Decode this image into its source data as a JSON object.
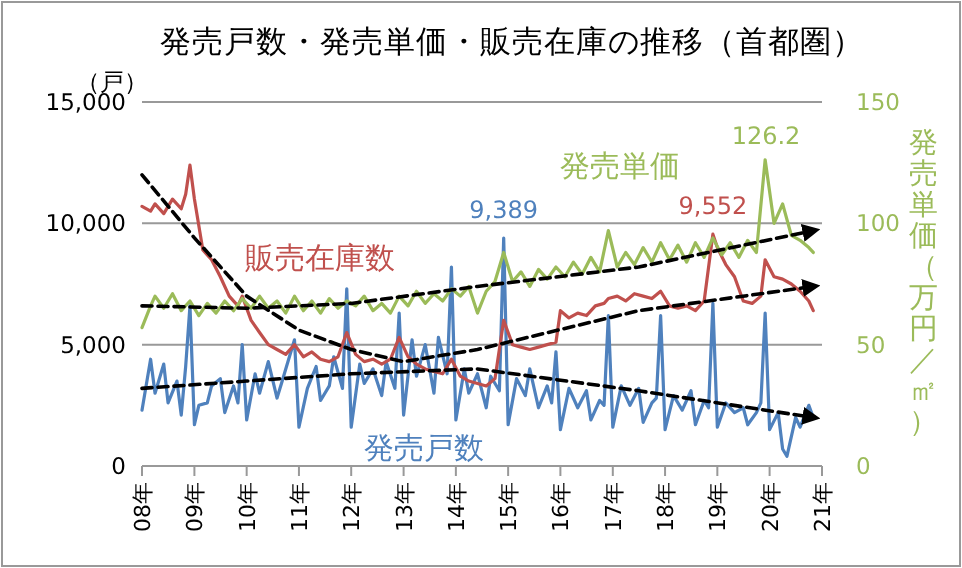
{
  "chart_data": {
    "type": "line",
    "title": "発売戸数・発売単価・販売在庫の推移（首都圏）",
    "ylabel": "（戸）",
    "y2label": "発売単価（万円／㎡）",
    "xlim": [
      "2008-01",
      "2021-01"
    ],
    "xticks": [
      {
        "value": "2008-01",
        "label": "08年"
      },
      {
        "value": "2009-01",
        "label": "09年"
      },
      {
        "value": "2010-01",
        "label": "10年"
      },
      {
        "value": "2011-01",
        "label": "11年"
      },
      {
        "value": "2012-01",
        "label": "12年"
      },
      {
        "value": "2013-01",
        "label": "13年"
      },
      {
        "value": "2014-01",
        "label": "14年"
      },
      {
        "value": "2015-01",
        "label": "15年"
      },
      {
        "value": "2016-01",
        "label": "16年"
      },
      {
        "value": "2017-01",
        "label": "17年"
      },
      {
        "value": "2018-01",
        "label": "18年"
      },
      {
        "value": "2019-01",
        "label": "19年"
      },
      {
        "value": "2020-01",
        "label": "20年"
      },
      {
        "value": "2021-01",
        "label": "21年"
      }
    ],
    "ylim": [
      0,
      15000
    ],
    "yticks": [
      {
        "value": 0,
        "label": "0"
      },
      {
        "value": 5000,
        "label": "5,000"
      },
      {
        "value": 10000,
        "label": "10,000"
      },
      {
        "value": 15000,
        "label": "15,000"
      }
    ],
    "y2lim": [
      0,
      150
    ],
    "y2ticks": [
      0,
      50,
      100,
      150
    ],
    "grid": "y",
    "annotations": [
      {
        "text": "9,389",
        "x": "2014-12",
        "y": 9389
      },
      {
        "text": "9,552",
        "x": "2018-12",
        "y": 9552
      },
      "126.2"
    ],
    "series": [
      {
        "name": "発売戸数",
        "color": "#4f81bd",
        "x": [
          "2008-01",
          "2008-03",
          "2008-04",
          "2008-06",
          "2008-07",
          "2008-09",
          "2008-10",
          "2008-11",
          "2008-12",
          "2009-01",
          "2009-02",
          "2009-04",
          "2009-05",
          "2009-07",
          "2009-08",
          "2009-10",
          "2009-11",
          "2009-12",
          "2010-01",
          "2010-03",
          "2010-04",
          "2010-06",
          "2010-08",
          "2010-09",
          "2010-10",
          "2010-12",
          "2011-01",
          "2011-03",
          "2011-05",
          "2011-06",
          "2011-08",
          "2011-09",
          "2011-11",
          "2011-12",
          "2012-01",
          "2012-03",
          "2012-04",
          "2012-06",
          "2012-08",
          "2012-09",
          "2012-11",
          "2012-12",
          "2013-01",
          "2013-03",
          "2013-04",
          "2013-06",
          "2013-08",
          "2013-09",
          "2013-11",
          "2013-12",
          "2014-01",
          "2014-03",
          "2014-04",
          "2014-06",
          "2014-08",
          "2014-09",
          "2014-11",
          "2014-12",
          "2015-01",
          "2015-03",
          "2015-05",
          "2015-06",
          "2015-08",
          "2015-10",
          "2015-11",
          "2015-12",
          "2016-01",
          "2016-03",
          "2016-05",
          "2016-07",
          "2016-08",
          "2016-10",
          "2016-11",
          "2016-12",
          "2017-01",
          "2017-03",
          "2017-05",
          "2017-07",
          "2017-08",
          "2017-10",
          "2017-11",
          "2017-12",
          "2018-01",
          "2018-03",
          "2018-05",
          "2018-07",
          "2018-08",
          "2018-10",
          "2018-11",
          "2018-12",
          "2019-01",
          "2019-03",
          "2019-05",
          "2019-07",
          "2019-08",
          "2019-10",
          "2019-11",
          "2019-12",
          "2020-01",
          "2020-03",
          "2020-04",
          "2020-05",
          "2020-07",
          "2020-08",
          "2020-10",
          "2020-11"
        ],
        "values": [
          2300,
          4400,
          3000,
          4200,
          2600,
          3500,
          2100,
          4100,
          6600,
          1700,
          2500,
          2600,
          3300,
          3600,
          2200,
          3300,
          2600,
          5000,
          1900,
          3800,
          3000,
          4300,
          2800,
          3400,
          4000,
          5200,
          1600,
          3200,
          4100,
          2700,
          3300,
          4500,
          3200,
          7300,
          1600,
          4200,
          3400,
          4000,
          2900,
          4300,
          3200,
          6300,
          2100,
          5200,
          3700,
          5000,
          3000,
          5300,
          3800,
          8200,
          1900,
          4000,
          3000,
          3800,
          2400,
          3700,
          3100,
          9389,
          1700,
          3600,
          2900,
          4000,
          2400,
          3300,
          2600,
          4700,
          1500,
          3200,
          2400,
          3100,
          1900,
          2700,
          2500,
          6200,
          1600,
          3300,
          2500,
          3200,
          1800,
          2600,
          2800,
          6200,
          1500,
          2900,
          2300,
          3100,
          1700,
          2700,
          2400,
          6700,
          1600,
          2600,
          2200,
          2400,
          1700,
          2200,
          2600,
          6300,
          1500,
          2200,
          700,
          400,
          2000,
          1600,
          2500,
          2000
        ]
      },
      {
        "name": "販売在庫数",
        "color": "#c0504d",
        "x": [
          "2008-01",
          "2008-03",
          "2008-04",
          "2008-06",
          "2008-08",
          "2008-10",
          "2008-11",
          "2008-12",
          "2009-01",
          "2009-03",
          "2009-05",
          "2009-07",
          "2009-09",
          "2009-11",
          "2009-12",
          "2010-02",
          "2010-04",
          "2010-06",
          "2010-08",
          "2010-10",
          "2010-12",
          "2011-02",
          "2011-04",
          "2011-06",
          "2011-08",
          "2011-10",
          "2011-12",
          "2012-02",
          "2012-04",
          "2012-06",
          "2012-08",
          "2012-10",
          "2012-12",
          "2013-02",
          "2013-04",
          "2013-06",
          "2013-08",
          "2013-10",
          "2013-12",
          "2014-02",
          "2014-04",
          "2014-06",
          "2014-08",
          "2014-10",
          "2014-12",
          "2015-02",
          "2015-04",
          "2015-06",
          "2015-08",
          "2015-10",
          "2015-12",
          "2016-01",
          "2016-03",
          "2016-05",
          "2016-07",
          "2016-09",
          "2016-11",
          "2016-12",
          "2017-02",
          "2017-04",
          "2017-06",
          "2017-08",
          "2017-10",
          "2017-12",
          "2018-02",
          "2018-04",
          "2018-06",
          "2018-08",
          "2018-10",
          "2018-12",
          "2019-01",
          "2019-03",
          "2019-05",
          "2019-07",
          "2019-09",
          "2019-11",
          "2019-12",
          "2020-02",
          "2020-04",
          "2020-06",
          "2020-08",
          "2020-10",
          "2020-11"
        ],
        "values": [
          10700,
          10500,
          10800,
          10400,
          11000,
          10600,
          11200,
          12400,
          11000,
          8900,
          8500,
          7800,
          7000,
          6600,
          7000,
          6000,
          5500,
          5000,
          4800,
          4600,
          5000,
          4500,
          4700,
          4400,
          4300,
          4500,
          5500,
          4600,
          4300,
          4400,
          4200,
          4400,
          5300,
          4500,
          4200,
          4000,
          3900,
          3800,
          4400,
          3700,
          3500,
          3400,
          3300,
          3600,
          6000,
          5000,
          4900,
          4800,
          4900,
          5000,
          5100,
          6400,
          6100,
          6300,
          6200,
          6600,
          6700,
          6900,
          7000,
          6800,
          7100,
          7000,
          6900,
          7200,
          6600,
          6500,
          6600,
          6400,
          6800,
          9552,
          9000,
          8300,
          7800,
          6800,
          6700,
          7000,
          8500,
          7800,
          7700,
          7500,
          7200,
          6800,
          6400
        ]
      },
      {
        "name": "発売単価",
        "color": "#9bbb59",
        "axis": "y2",
        "x": [
          "2008-01",
          "2008-03",
          "2008-04",
          "2008-06",
          "2008-08",
          "2008-10",
          "2008-12",
          "2009-02",
          "2009-04",
          "2009-06",
          "2009-08",
          "2009-10",
          "2009-12",
          "2010-02",
          "2010-04",
          "2010-06",
          "2010-08",
          "2010-10",
          "2010-12",
          "2011-02",
          "2011-04",
          "2011-06",
          "2011-08",
          "2011-10",
          "2011-12",
          "2012-02",
          "2012-04",
          "2012-06",
          "2012-08",
          "2012-10",
          "2012-12",
          "2013-02",
          "2013-04",
          "2013-06",
          "2013-08",
          "2013-10",
          "2013-12",
          "2014-02",
          "2014-04",
          "2014-06",
          "2014-08",
          "2014-10",
          "2014-12",
          "2015-02",
          "2015-04",
          "2015-06",
          "2015-08",
          "2015-10",
          "2015-12",
          "2016-02",
          "2016-04",
          "2016-06",
          "2016-08",
          "2016-10",
          "2016-12",
          "2017-02",
          "2017-04",
          "2017-06",
          "2017-08",
          "2017-10",
          "2017-12",
          "2018-02",
          "2018-04",
          "2018-06",
          "2018-08",
          "2018-10",
          "2018-12",
          "2019-02",
          "2019-04",
          "2019-06",
          "2019-08",
          "2019-10",
          "2019-12",
          "2020-02",
          "2020-04",
          "2020-06",
          "2020-08",
          "2020-10",
          "2020-11"
        ],
        "values": [
          57,
          66,
          70,
          65,
          71,
          64,
          68,
          62,
          67,
          63,
          68,
          64,
          69,
          65,
          70,
          65,
          68,
          63,
          70,
          64,
          68,
          63,
          69,
          65,
          68,
          66,
          70,
          64,
          67,
          63,
          70,
          66,
          72,
          67,
          71,
          68,
          73,
          70,
          74,
          63,
          72,
          76,
          88,
          76,
          80,
          74,
          81,
          77,
          82,
          78,
          84,
          79,
          86,
          80,
          97,
          82,
          88,
          83,
          90,
          84,
          92,
          85,
          91,
          84,
          92,
          86,
          94,
          87,
          92,
          86,
          93,
          88,
          126.2,
          100,
          108,
          95,
          93,
          90,
          88
        ]
      },
      {
        "color": "#000000",
        "line_style": "dashed",
        "x": [
          "2008-01",
          "2010-01",
          "2012-01",
          "2014-06",
          "2017-07",
          "2020-11"
        ],
        "values": [
          3200,
          3500,
          3800,
          4000,
          3100,
          2000
        ]
      },
      {
        "color": "#000000",
        "line_style": "dashed",
        "x": [
          "2008-01",
          "2009-01",
          "2010-01",
          "2011-01",
          "2012-01",
          "2013-01",
          "2014-06",
          "2017-07",
          "2020-11"
        ],
        "values": [
          12000,
          9400,
          7000,
          5600,
          4800,
          4300,
          4800,
          6400,
          7400
        ]
      },
      {
        "color": "#000000",
        "line_style": "dashed",
        "axis": "y2",
        "x": [
          "2008-01",
          "2010-01",
          "2012-01",
          "2014-06",
          "2017-07",
          "2020-11"
        ],
        "values": [
          66,
          65,
          67,
          74,
          82,
          97
        ]
      }
    ]
  }
}
